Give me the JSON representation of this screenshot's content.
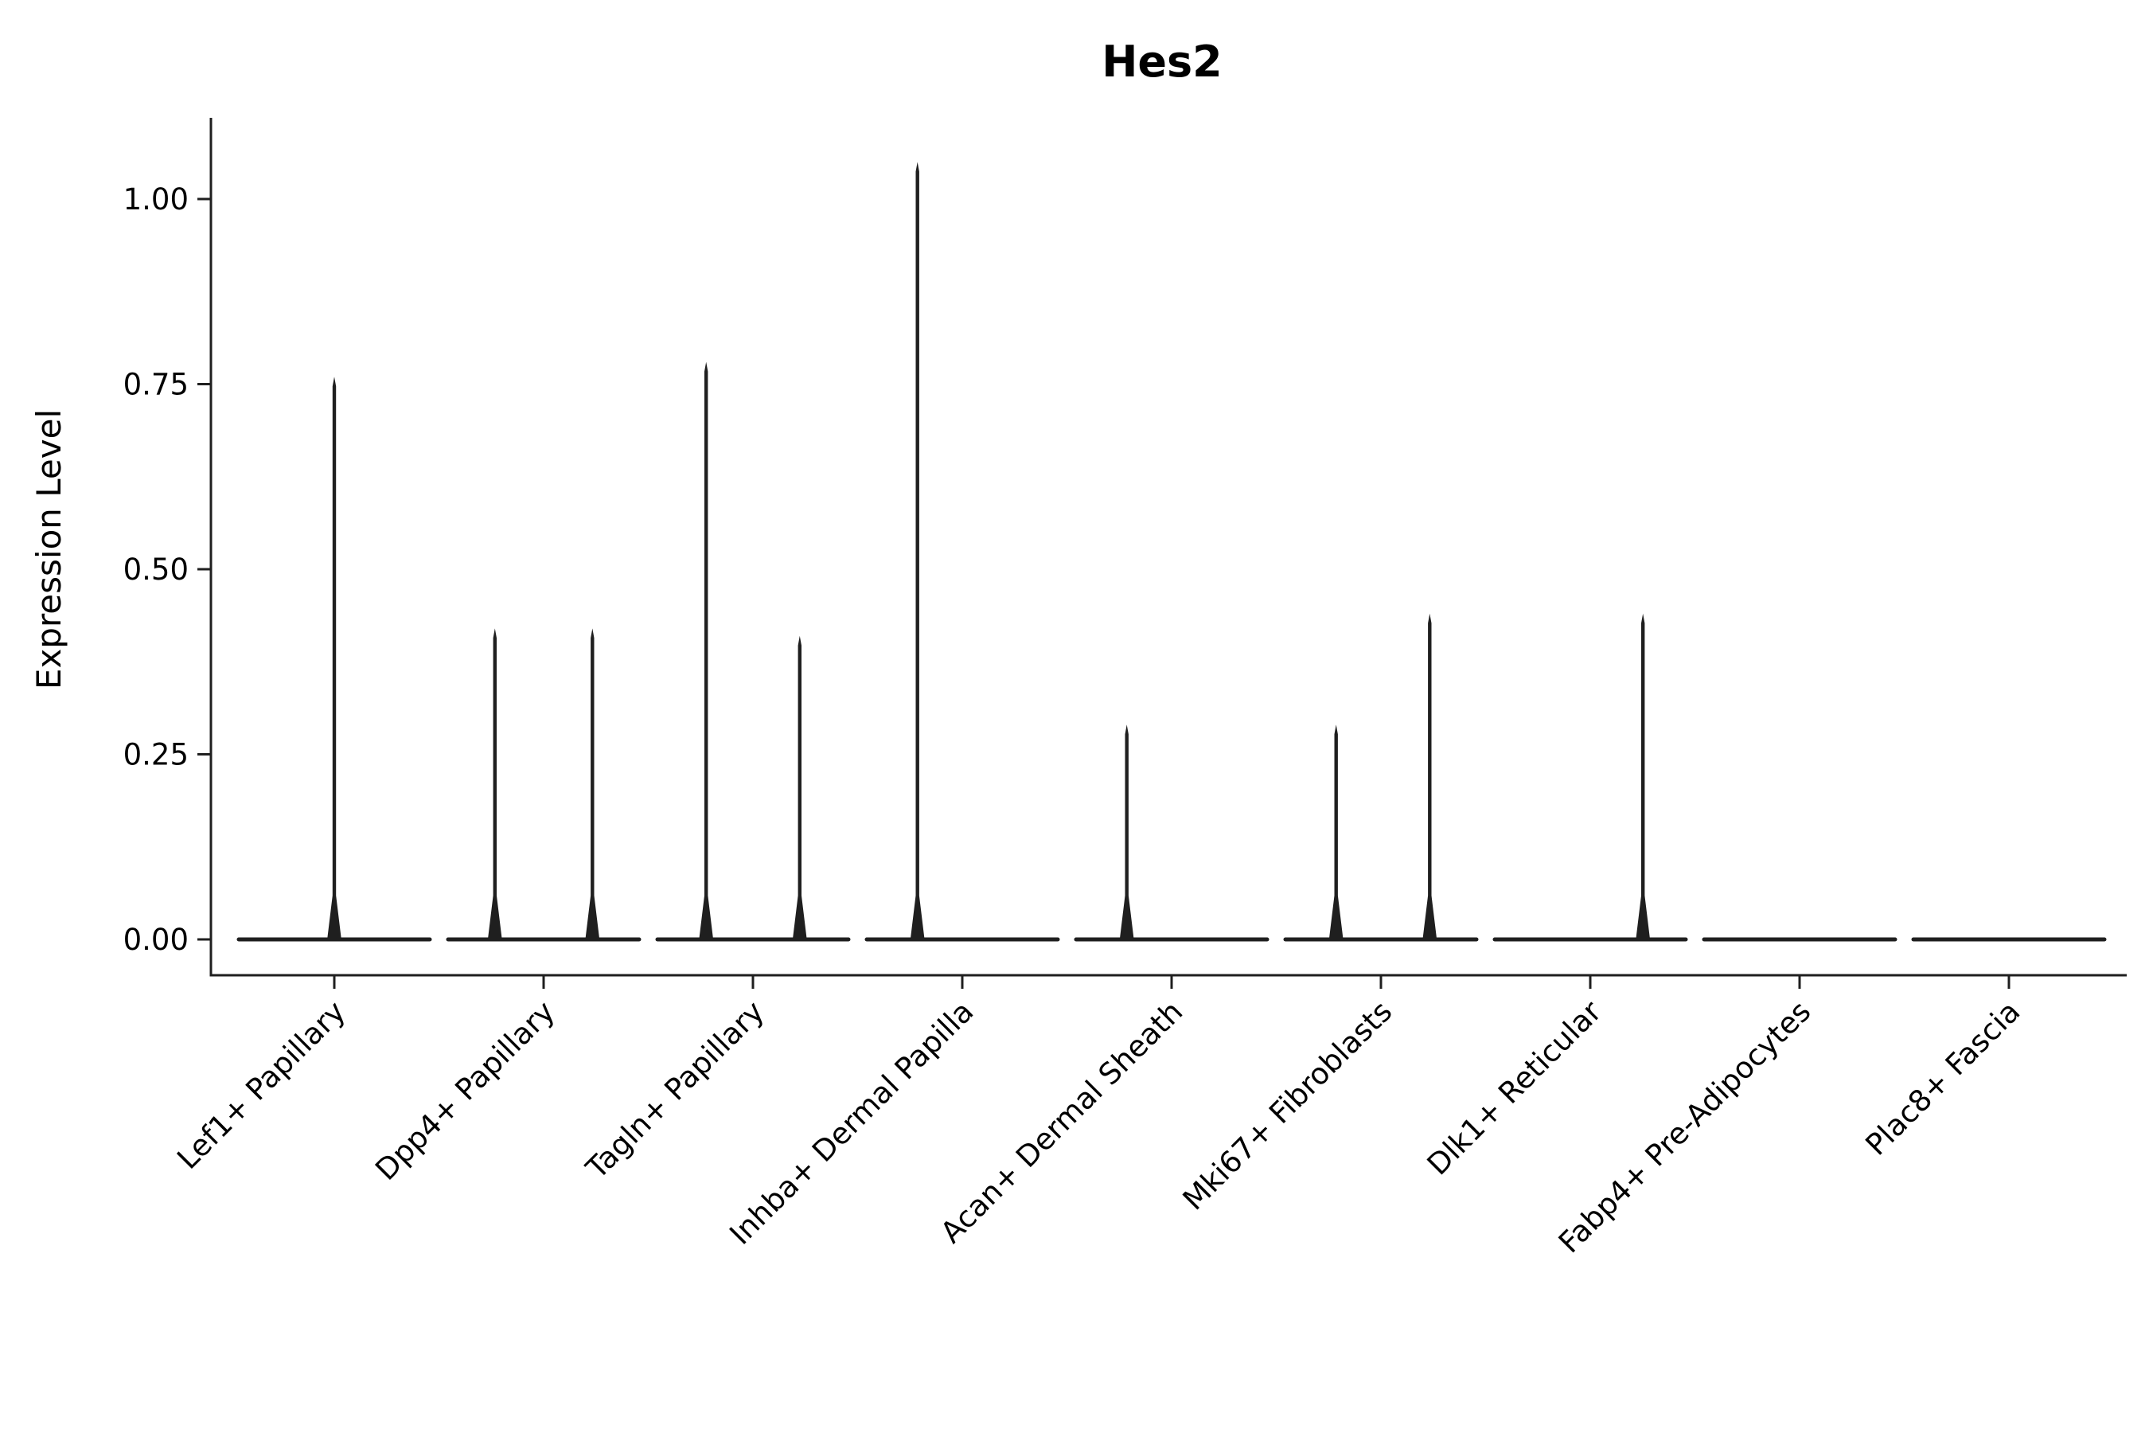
{
  "chart_data": {
    "type": "violin",
    "title": "Hes2",
    "xlabel": "",
    "ylabel": "Expression Level",
    "ylim": [
      0,
      1.08
    ],
    "grid": false,
    "legend": "none",
    "background_color": "#ffffff",
    "line_color": "#1f1f1f",
    "baseline_value": 0.0,
    "yticks": [
      {
        "value": 0.0,
        "label": "0.00"
      },
      {
        "value": 0.25,
        "label": "0.25"
      },
      {
        "value": 0.5,
        "label": "0.50"
      },
      {
        "value": 0.75,
        "label": "0.75"
      },
      {
        "value": 1.0,
        "label": "1.00"
      }
    ],
    "categories": [
      {
        "label": "Lef1+ Papillary",
        "spikes": [
          {
            "offset": 0.0,
            "max": 0.76
          }
        ]
      },
      {
        "label": "Dpp4+ Papillary",
        "spikes": [
          {
            "offset": -0.25,
            "max": 0.42
          },
          {
            "offset": 0.25,
            "max": 0.42
          }
        ]
      },
      {
        "label": "Tagln+ Papillary",
        "spikes": [
          {
            "offset": -0.24,
            "max": 0.78
          },
          {
            "offset": 0.24,
            "max": 0.41
          }
        ]
      },
      {
        "label": "Inhba+ Dermal Papilla",
        "spikes": [
          {
            "offset": -0.23,
            "max": 1.05
          }
        ]
      },
      {
        "label": "Acan+ Dermal Sheath",
        "spikes": [
          {
            "offset": -0.23,
            "max": 0.29
          }
        ]
      },
      {
        "label": "Mki67+ Fibroblasts",
        "spikes": [
          {
            "offset": -0.23,
            "max": 0.29
          },
          {
            "offset": 0.25,
            "max": 0.44
          }
        ]
      },
      {
        "label": "Dlk1+ Reticular",
        "spikes": [
          {
            "offset": 0.27,
            "max": 0.44
          }
        ]
      },
      {
        "label": "Fabp4+ Pre-Adipocytes",
        "spikes": []
      },
      {
        "label": "Plac8+ Fascia",
        "spikes": []
      }
    ]
  }
}
